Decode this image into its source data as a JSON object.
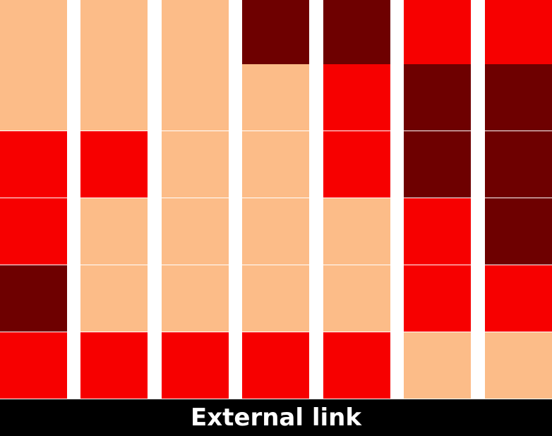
{
  "palette": {
    "peach": "#FCBC88",
    "red": "#F70000",
    "maroon": "#6E0000"
  },
  "grid": {
    "columns": [
      [
        "peach",
        "peach",
        "red",
        "red",
        "maroon",
        "red"
      ],
      [
        "peach",
        "peach",
        "red",
        "peach",
        "peach",
        "red"
      ],
      [
        "peach",
        "peach",
        "peach",
        "peach",
        "peach",
        "red"
      ],
      [
        "maroon",
        "peach",
        "peach",
        "peach",
        "peach",
        "red"
      ],
      [
        "maroon",
        "red",
        "red",
        "peach",
        "peach",
        "red"
      ],
      [
        "red",
        "maroon",
        "maroon",
        "red",
        "red",
        "peach"
      ],
      [
        "red",
        "maroon",
        "maroon",
        "maroon",
        "red",
        "peach"
      ]
    ]
  },
  "footer": {
    "label": "External link"
  }
}
